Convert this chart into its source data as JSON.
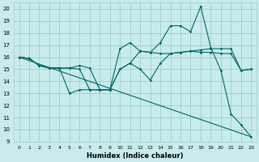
{
  "xlabel": "Humidex (Indice chaleur)",
  "xlim": [
    -0.5,
    23.5
  ],
  "ylim": [
    9,
    20.5
  ],
  "xticks": [
    0,
    1,
    2,
    3,
    4,
    5,
    6,
    7,
    8,
    9,
    10,
    11,
    12,
    13,
    14,
    15,
    16,
    17,
    18,
    19,
    20,
    21,
    22,
    23
  ],
  "yticks": [
    9,
    10,
    11,
    12,
    13,
    14,
    15,
    16,
    17,
    18,
    19,
    20
  ],
  "bg_color": "#c8ecec",
  "grid_color": "#a0cccc",
  "line_color": "#006666",
  "line_straight": {
    "x": [
      0,
      23
    ],
    "y": [
      16.0,
      9.4
    ]
  },
  "line2": {
    "x": [
      0,
      1,
      2,
      3,
      4,
      5,
      6,
      7,
      8,
      9,
      10,
      11,
      12,
      13,
      14,
      15,
      16,
      17,
      18,
      19,
      20,
      21,
      22,
      23
    ],
    "y": [
      16.0,
      15.9,
      15.3,
      15.1,
      15.1,
      13.0,
      13.3,
      13.3,
      13.3,
      13.3,
      16.7,
      17.2,
      16.5,
      16.4,
      17.2,
      18.6,
      18.6,
      18.1,
      20.2,
      16.8,
      14.9,
      11.3,
      10.4,
      9.4
    ]
  },
  "line3": {
    "x": [
      0,
      1,
      2,
      3,
      4,
      5,
      6,
      7,
      8,
      9,
      10,
      11,
      12,
      13,
      14,
      15,
      16,
      17,
      18,
      19,
      20,
      21,
      22,
      23
    ],
    "y": [
      16.0,
      15.9,
      15.3,
      15.1,
      15.1,
      15.1,
      15.0,
      13.3,
      13.3,
      13.3,
      15.0,
      15.5,
      16.5,
      16.4,
      16.3,
      16.3,
      16.4,
      16.5,
      16.6,
      16.7,
      16.7,
      16.7,
      14.9,
      15.0
    ]
  },
  "line4": {
    "x": [
      0,
      1,
      2,
      3,
      4,
      5,
      6,
      7,
      8,
      9,
      10,
      11,
      12,
      13,
      14,
      15,
      16,
      17,
      18,
      19,
      20,
      21,
      22,
      23
    ],
    "y": [
      16.0,
      15.9,
      15.3,
      15.1,
      15.1,
      15.1,
      15.3,
      15.1,
      13.3,
      13.3,
      15.0,
      15.5,
      15.0,
      14.1,
      15.5,
      16.3,
      16.4,
      16.5,
      16.4,
      16.4,
      16.3,
      16.3,
      14.9,
      15.0
    ]
  }
}
